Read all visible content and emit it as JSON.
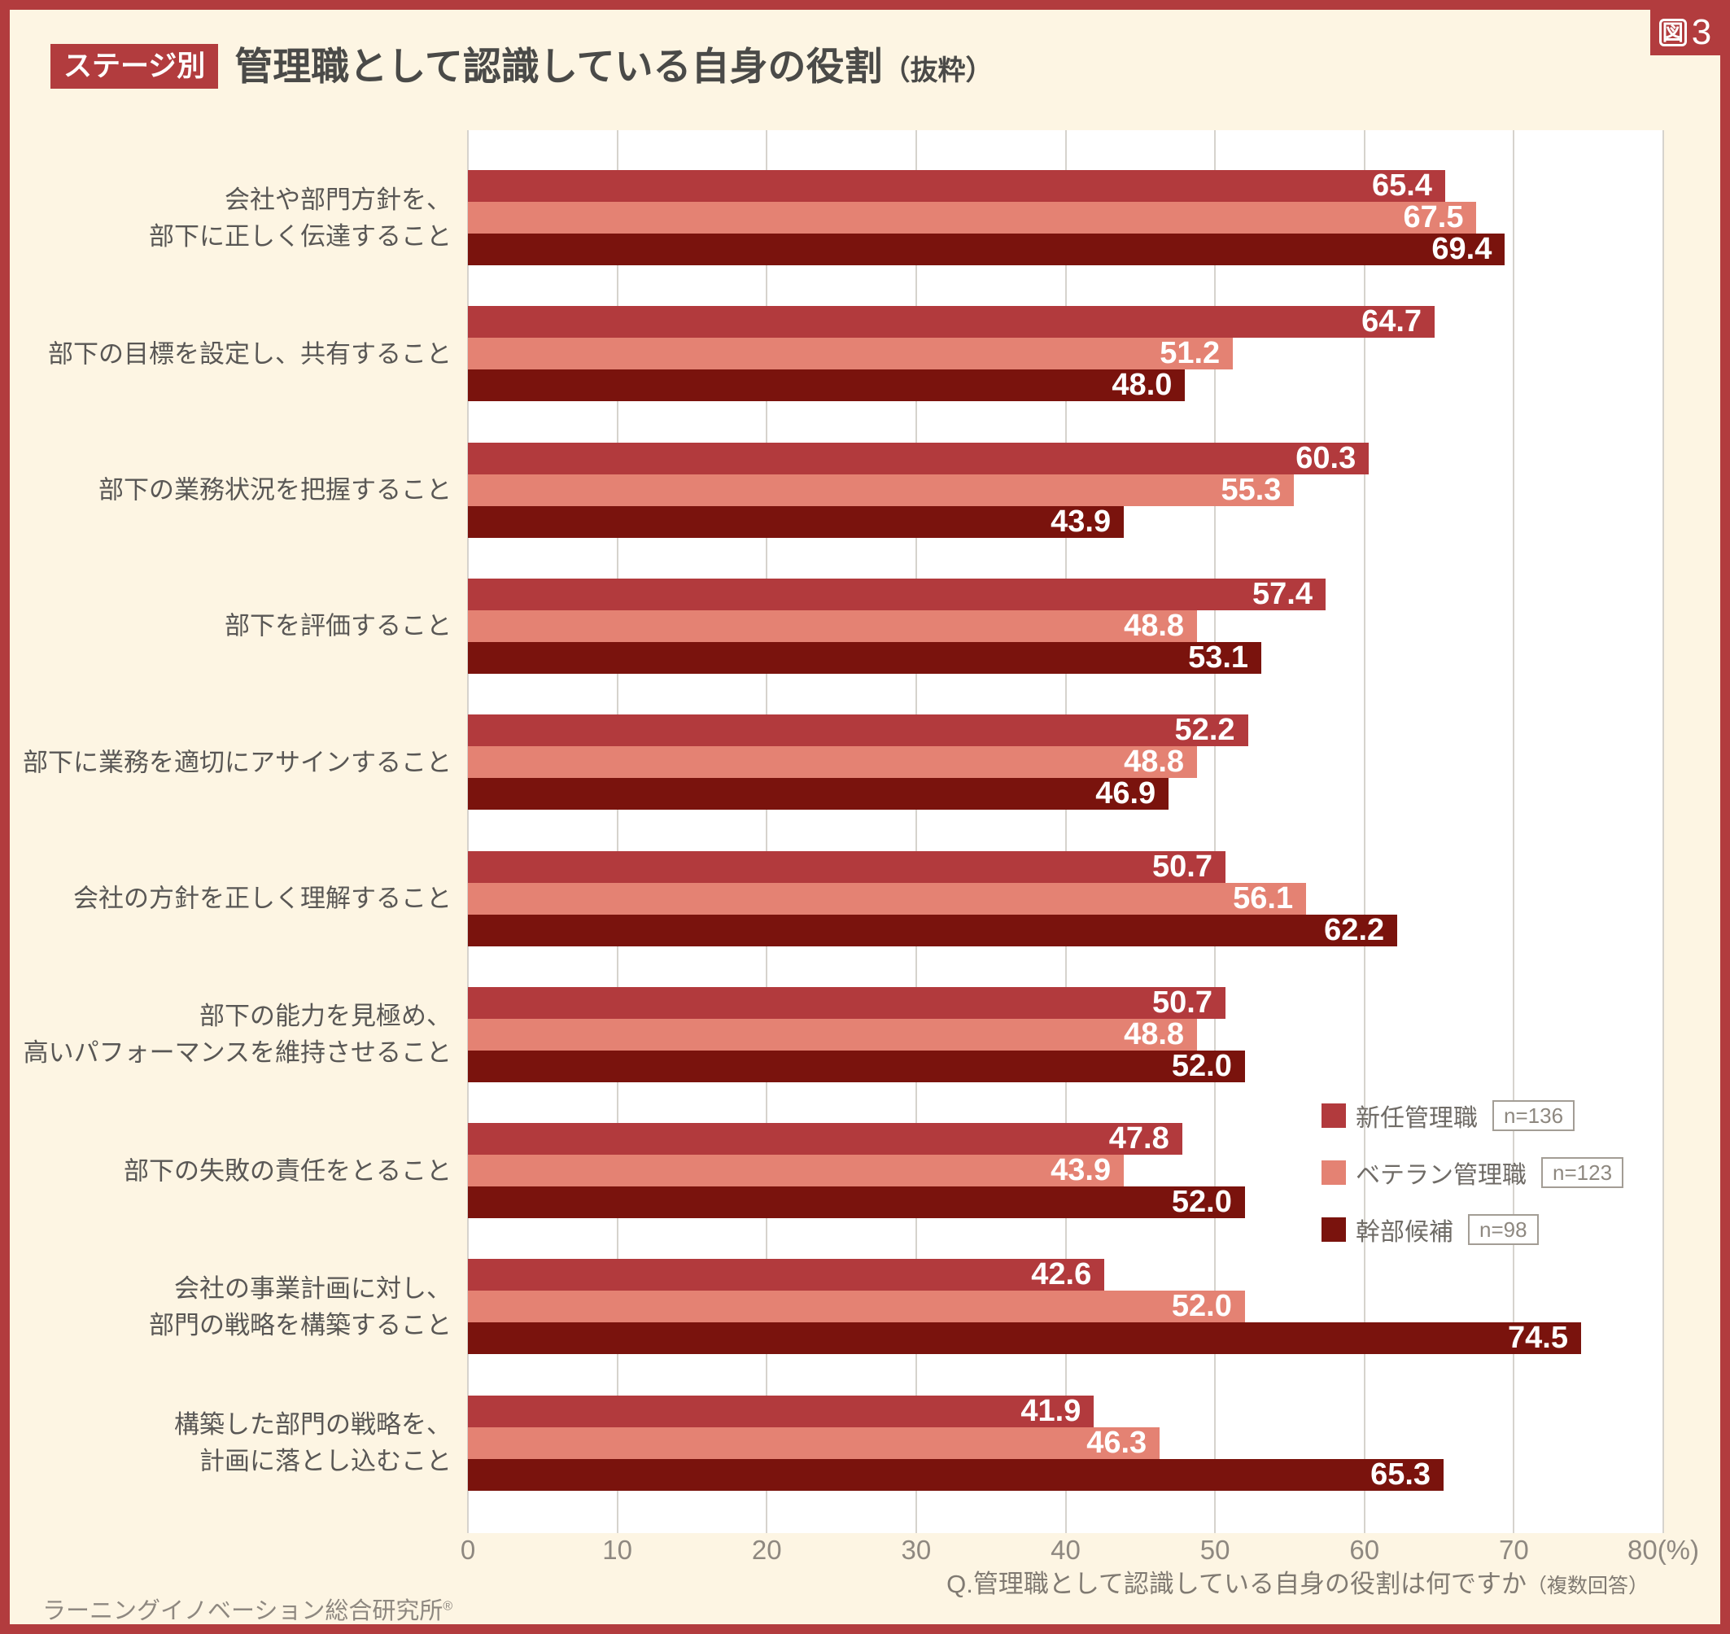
{
  "figure_tag": {
    "boxed": "図",
    "number": "3"
  },
  "header": {
    "badge": "ステージ別",
    "title": "管理職として認識している自身の役割",
    "title_suffix": "（抜粋）"
  },
  "legend": [
    {
      "label": "新任管理職",
      "n": "n=136",
      "color": "#b23a3d"
    },
    {
      "label": "ベテラン管理職",
      "n": "n=123",
      "color": "#e48273"
    },
    {
      "label": "幹部候補",
      "n": "n=98",
      "color": "#7a130d"
    }
  ],
  "footer": {
    "question": "Q.管理職として認識している自身の役割は何ですか",
    "question_note": "（複数回答）",
    "source": "ラーニングイノベーション総合研究所",
    "source_mark": "®"
  },
  "chart_data": {
    "type": "bar",
    "orientation": "horizontal",
    "title": "ステージ別 管理職として認識している自身の役割（抜粋）",
    "xlabel": "%",
    "xlim": [
      0,
      80
    ],
    "xticks": [
      0,
      10,
      20,
      30,
      40,
      50,
      60,
      70,
      80
    ],
    "xtick_last_suffix": "(%)",
    "grid": true,
    "legend_position": "inside-right",
    "categories": [
      [
        "会社や部門方針を、",
        "部下に正しく伝達すること"
      ],
      [
        "部下の目標を設定し、共有すること"
      ],
      [
        "部下の業務状況を把握すること"
      ],
      [
        "部下を評価すること"
      ],
      [
        "部下に業務を適切にアサインすること"
      ],
      [
        "会社の方針を正しく理解すること"
      ],
      [
        "部下の能力を見極め、",
        "高いパフォーマンスを維持させること"
      ],
      [
        "部下の失敗の責任をとること"
      ],
      [
        "会社の事業計画に対し、",
        "部門の戦略を構築すること"
      ],
      [
        "構築した部門の戦略を、",
        "計画に落とし込むこと"
      ]
    ],
    "series": [
      {
        "name": "新任管理職",
        "n": 136,
        "color": "#b23a3d",
        "values": [
          65.4,
          64.7,
          60.3,
          57.4,
          52.2,
          50.7,
          50.7,
          47.8,
          42.6,
          41.9
        ]
      },
      {
        "name": "ベテラン管理職",
        "n": 123,
        "color": "#e48273",
        "values": [
          67.5,
          51.2,
          55.3,
          48.8,
          48.8,
          56.1,
          48.8,
          43.9,
          52.0,
          46.3
        ]
      },
      {
        "name": "幹部候補",
        "n": 98,
        "color": "#7a130d",
        "values": [
          69.4,
          48.0,
          43.9,
          53.1,
          46.9,
          62.2,
          52.0,
          52.0,
          74.5,
          65.3
        ]
      }
    ]
  }
}
